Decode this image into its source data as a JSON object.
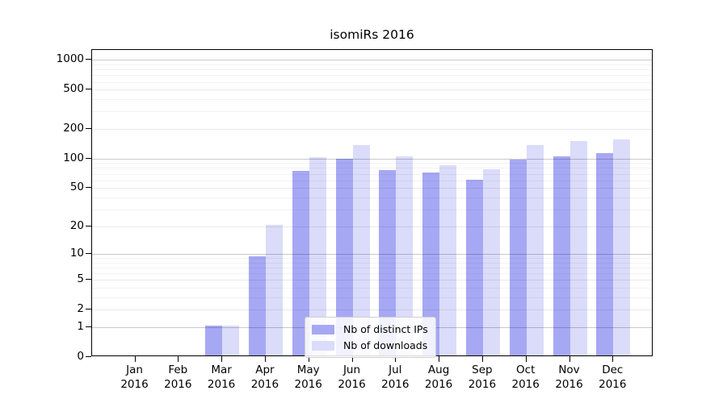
{
  "chart_data": {
    "type": "bar",
    "title": "isomiRs 2016",
    "xlabel": "",
    "ylabel": "",
    "categories": [
      "Jan",
      "Feb",
      "Mar",
      "Apr",
      "May",
      "Jun",
      "Jul",
      "Aug",
      "Sep",
      "Oct",
      "Nov",
      "Dec"
    ],
    "category_year": "2016",
    "series": [
      {
        "name": "Nb of distinct IPs",
        "color": "#a6a8f4",
        "values": [
          0,
          0,
          1,
          9,
          72,
          96,
          74,
          69,
          59,
          94,
          102,
          110
        ]
      },
      {
        "name": "Nb of downloads",
        "color": "#dadcfa",
        "values": [
          0,
          0,
          1,
          20,
          100,
          133,
          102,
          82,
          75,
          131,
          145,
          150
        ]
      }
    ],
    "yscale": "log1p",
    "yticks": [
      0,
      1,
      2,
      5,
      10,
      20,
      50,
      100,
      200,
      500,
      1000
    ],
    "ylim": [
      0,
      1260
    ],
    "grid": true,
    "legend_position": "lower-center-inside",
    "axis_color": "#000000",
    "grid_decade_values": [
      1,
      10,
      100,
      1000
    ],
    "grid_major_values": [
      2,
      5,
      20,
      50,
      200,
      500
    ]
  }
}
